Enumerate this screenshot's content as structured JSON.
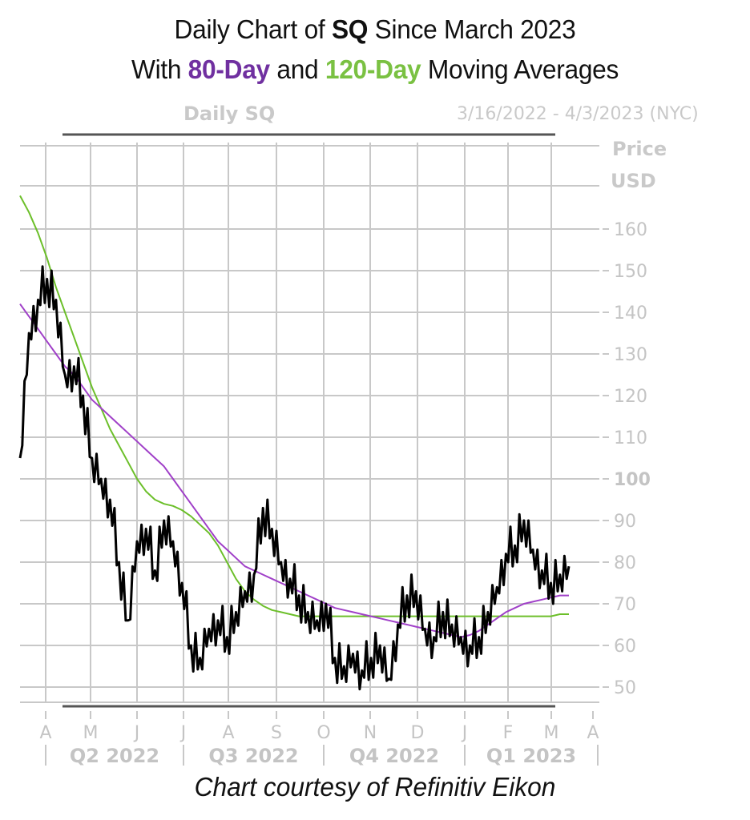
{
  "title": {
    "line1_prefix": "Daily Chart of ",
    "line1_ticker": "SQ",
    "line1_suffix": " Since March 2023",
    "line2_prefix": "With ",
    "line2_ma1": "80-Day",
    "line2_mid": " and ",
    "line2_ma2": "120-Day",
    "line2_suffix": " Moving Averages"
  },
  "chart_header": {
    "left": "Daily SQ",
    "right": "3/16/2022 - 4/3/2023 (NYC)"
  },
  "axis": {
    "y_title_line1": "Price",
    "y_title_line2": "USD"
  },
  "caption": "Chart courtesy of Refinitiv Eikon",
  "colors": {
    "price": "#000000",
    "ma80": "#a040c8",
    "ma120": "#6cbf2a",
    "grid": "#c8c8c8",
    "label": "#c4c4c4",
    "title_ma80": "#7030a0",
    "title_ma120": "#7ac142"
  },
  "chart_data": {
    "type": "line",
    "title": "Daily Chart of SQ Since March 2023 With 80-Day and 120-Day Moving Averages",
    "subtitle": "Daily SQ — 3/16/2022 - 4/3/2023 (NYC)",
    "xlabel": "",
    "ylabel": "Price USD",
    "ylim": [
      45,
      170
    ],
    "y_ticks": [
      50,
      60,
      70,
      80,
      90,
      100,
      110,
      120,
      130,
      140,
      150,
      160
    ],
    "x_month_ticks": [
      "A",
      "M",
      "J",
      "J",
      "A",
      "S",
      "O",
      "N",
      "D",
      "J",
      "F",
      "M",
      "A"
    ],
    "x_quarter_labels": [
      "Q2 2022",
      "Q3 2022",
      "Q4 2022",
      "Q1 2023"
    ],
    "grid": true,
    "legend": "none (colors described in title)",
    "x": [
      "2022-03-16",
      "2022-03-18",
      "2022-03-25",
      "2022-03-31",
      "2022-04-07",
      "2022-04-13",
      "2022-04-19",
      "2022-04-25",
      "2022-05-02",
      "2022-05-06",
      "2022-05-12",
      "2022-05-17",
      "2022-05-20",
      "2022-05-26",
      "2022-06-01",
      "2022-06-06",
      "2022-06-09",
      "2022-06-16",
      "2022-06-20",
      "2022-06-27",
      "2022-07-01",
      "2022-07-08",
      "2022-07-14",
      "2022-07-22",
      "2022-07-29",
      "2022-08-05",
      "2022-08-11",
      "2022-08-16",
      "2022-08-23",
      "2022-08-30",
      "2022-09-07",
      "2022-09-13",
      "2022-09-20",
      "2022-09-27",
      "2022-10-04",
      "2022-10-10",
      "2022-10-18",
      "2022-10-25",
      "2022-11-01",
      "2022-11-04",
      "2022-11-10",
      "2022-11-16",
      "2022-11-22",
      "2022-11-28",
      "2022-12-05",
      "2022-12-13",
      "2022-12-19",
      "2022-12-27",
      "2023-01-03",
      "2023-01-09",
      "2023-01-17",
      "2023-01-23",
      "2023-01-30",
      "2023-02-03",
      "2023-02-09",
      "2023-02-16",
      "2023-02-23",
      "2023-03-01",
      "2023-03-07",
      "2023-03-14",
      "2023-03-17",
      "2023-03-24"
    ],
    "series": [
      {
        "name": "SQ Daily Price",
        "values": [
          105,
          135,
          143,
          148,
          143,
          125,
          127,
          120,
          105,
          100,
          95,
          80,
          66,
          85,
          88,
          78,
          90,
          85,
          75,
          60,
          57,
          64,
          66,
          62,
          68,
          73,
          77,
          93,
          88,
          80,
          76,
          72,
          68,
          66,
          70,
          57,
          55,
          58,
          54,
          57,
          60,
          52,
          65,
          72,
          73,
          64,
          62,
          68,
          65,
          62,
          60,
          62,
          68,
          74,
          82,
          84,
          90,
          83,
          78,
          75,
          77,
          79
        ]
      },
      {
        "name": "80-Day MA",
        "values": [
          142,
          139,
          136,
          133,
          130,
          127,
          125,
          122,
          119,
          117,
          115,
          113,
          111,
          109,
          107,
          105,
          103,
          100,
          97,
          94,
          91,
          88,
          85,
          83,
          81,
          79,
          78,
          77,
          76,
          75,
          74,
          73,
          72,
          71,
          70,
          69,
          68.5,
          68,
          67.5,
          67,
          66.5,
          66,
          65.5,
          65,
          64.5,
          64,
          63.5,
          63,
          62.5,
          62,
          62.5,
          63.5,
          65,
          66.5,
          68,
          69,
          70,
          70.5,
          71,
          71.5,
          72,
          72
        ]
      },
      {
        "name": "120-Day MA",
        "values": [
          168,
          164,
          159,
          153,
          146,
          140,
          134,
          128,
          122,
          117,
          112,
          108,
          104,
          100,
          97,
          95,
          94,
          93.5,
          92.5,
          91,
          89,
          87,
          84,
          80,
          76,
          73,
          71,
          69.5,
          68.5,
          68,
          67.5,
          67,
          67,
          67,
          67,
          67,
          67,
          67,
          67,
          67,
          67,
          67,
          67,
          67,
          67,
          67,
          67,
          67,
          67,
          67,
          67,
          67,
          67,
          67,
          67,
          67,
          67,
          67,
          67,
          67,
          67.5,
          67.5
        ]
      }
    ]
  }
}
